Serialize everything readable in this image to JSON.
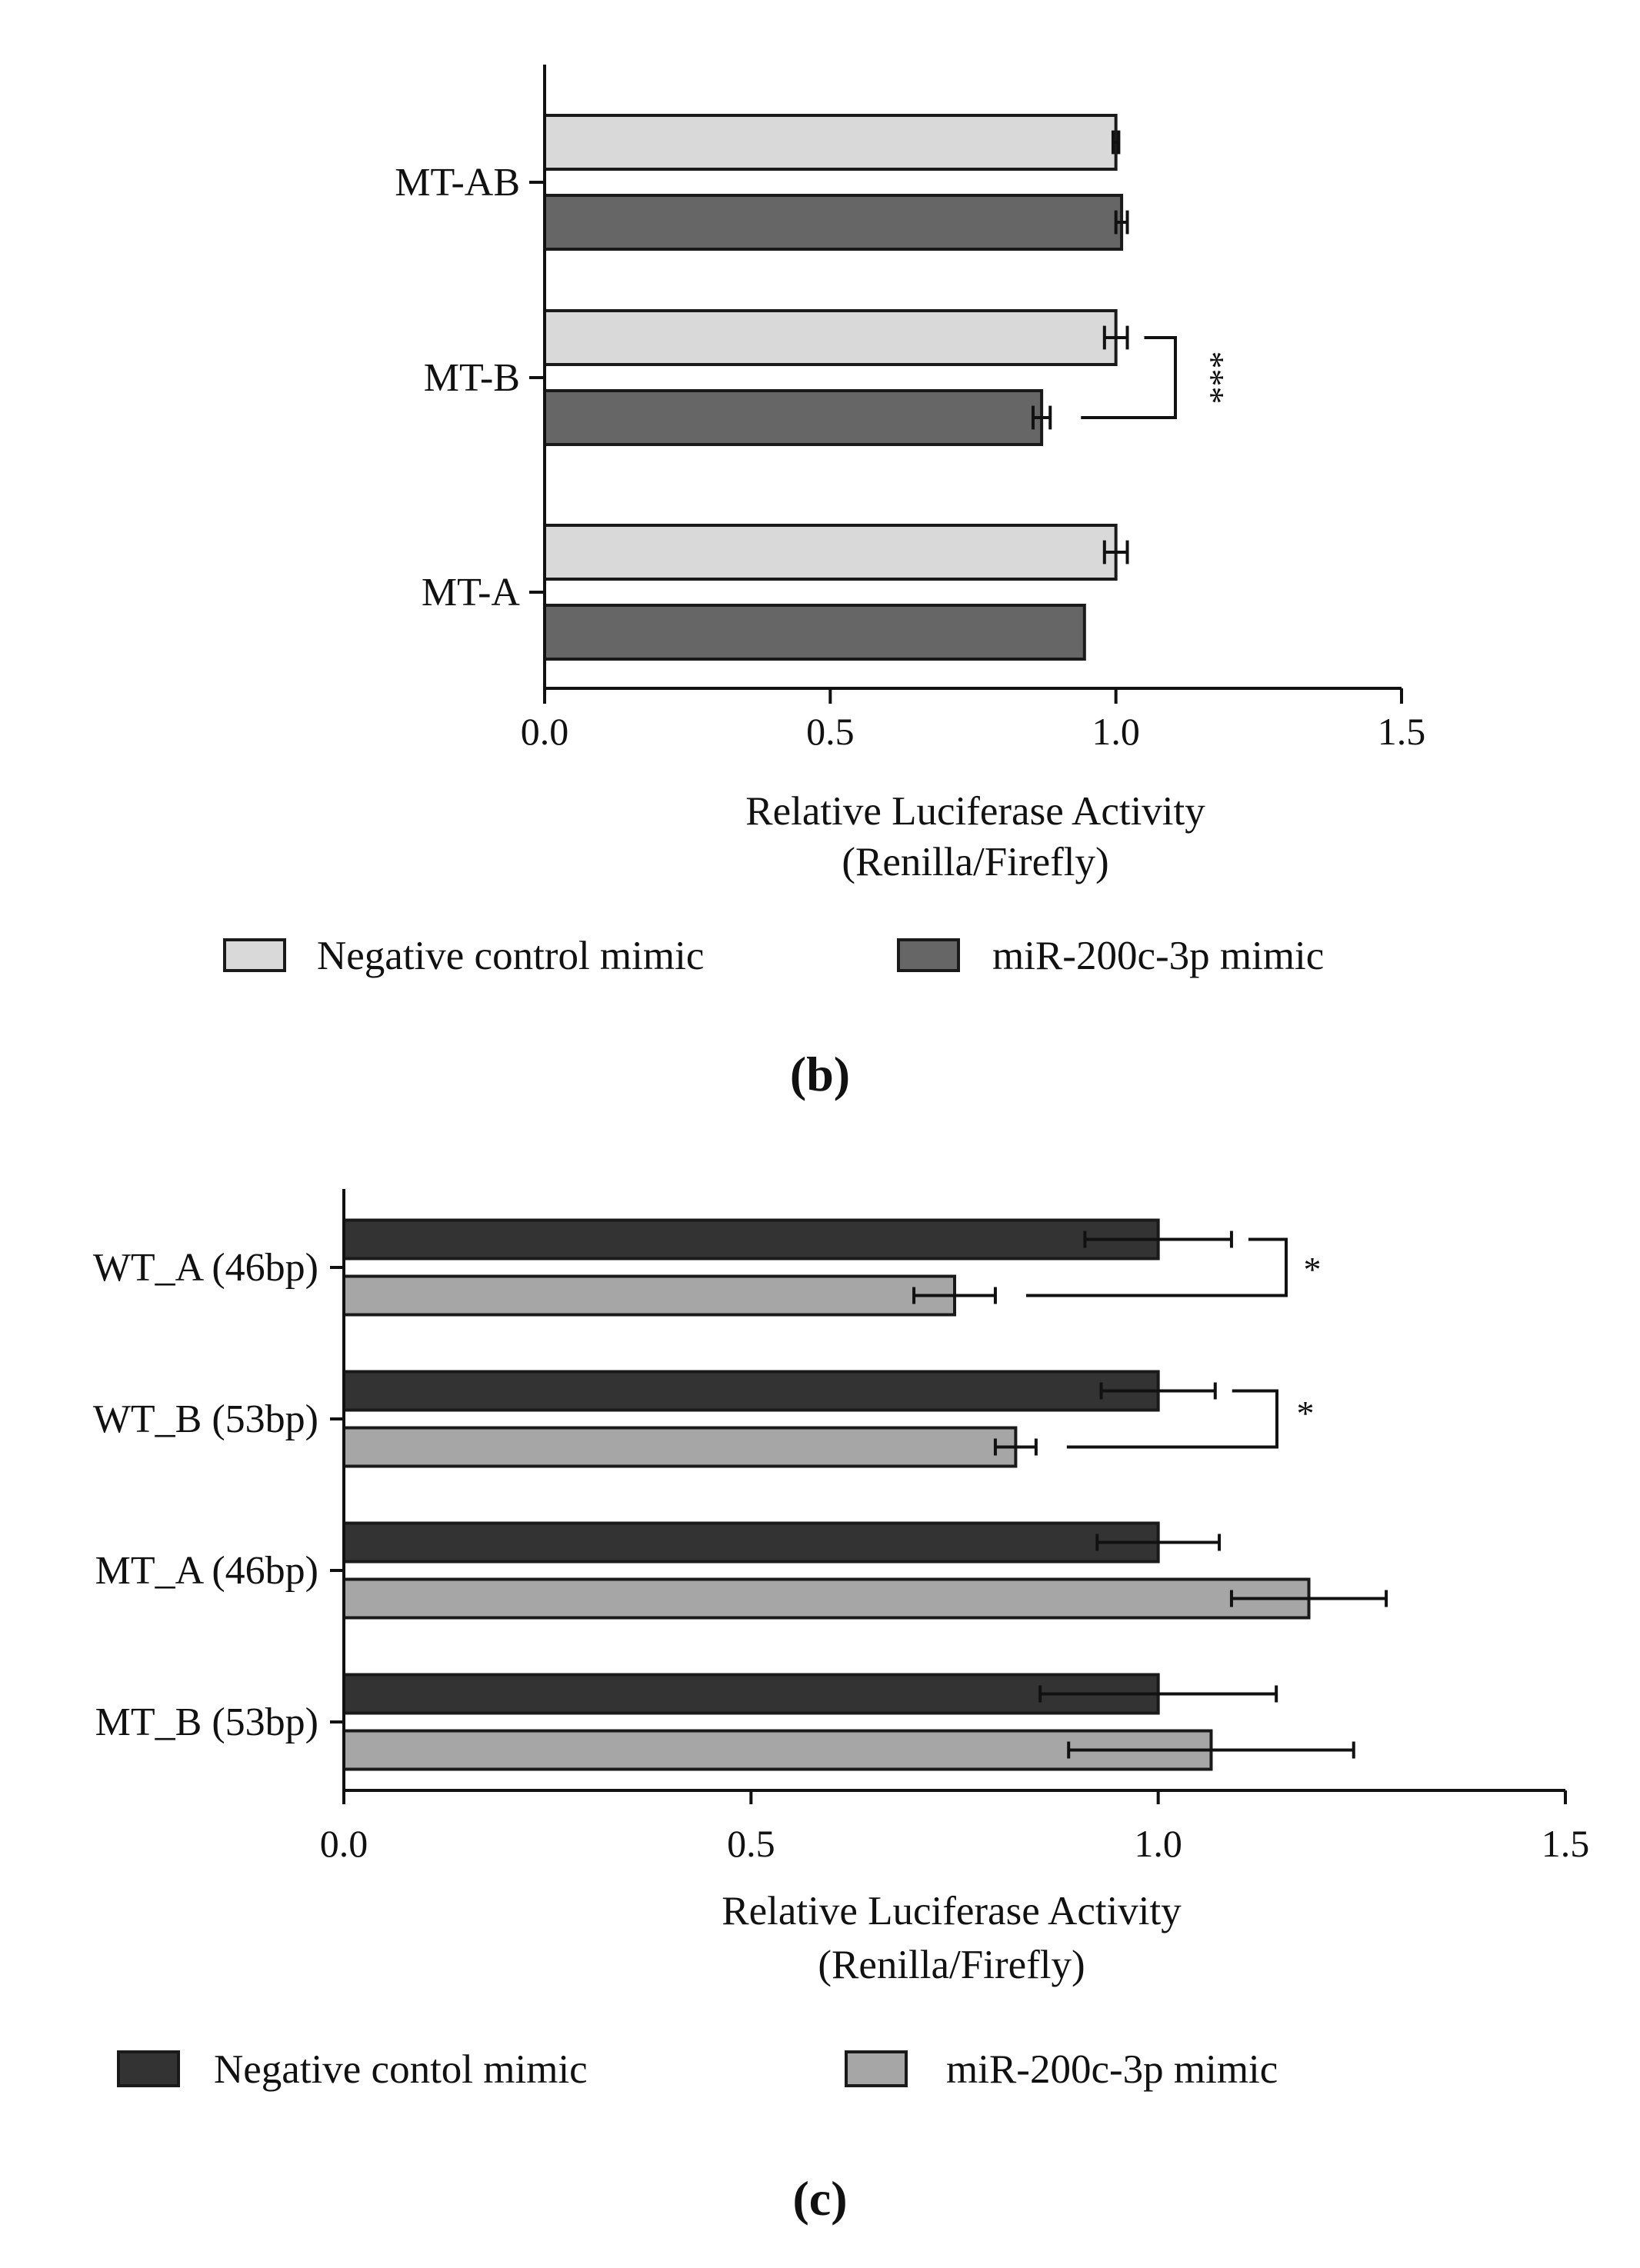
{
  "chart_data": [
    {
      "type": "bar",
      "orientation": "horizontal",
      "panel_label": "(b)",
      "categories": [
        "MT-AB",
        "MT-B",
        "MT-A"
      ],
      "xlabel_line1": "Relative Luciferase Activity",
      "xlabel_line2": "(Renilla/Firefly)",
      "xlim": [
        0,
        1.5
      ],
      "xticks": [
        "0.0",
        "0.5",
        "1.0",
        "1.5"
      ],
      "grid": false,
      "legend_position": "bottom",
      "series": [
        {
          "name": "Negative control mimic",
          "color": "#d9d9d9",
          "values": [
            1.0,
            1.0,
            1.0
          ],
          "errors": [
            0.005,
            0.02,
            0.02
          ]
        },
        {
          "name": "miR-200c-3p mimic",
          "color": "#666666",
          "values": [
            1.01,
            0.87,
            0.945
          ],
          "errors": [
            0.01,
            0.015,
            0.0
          ]
        }
      ],
      "significance": [
        {
          "category": "MT-B",
          "label": "***"
        }
      ]
    },
    {
      "type": "bar",
      "orientation": "horizontal",
      "panel_label": "(c)",
      "categories": [
        "WT_A (46bp)",
        "WT_B (53bp)",
        "MT_A (46bp)",
        "MT_B (53bp)"
      ],
      "xlabel_line1": "Relative Luciferase Activity",
      "xlabel_line2": "(Renilla/Firefly)",
      "xlim": [
        0,
        1.5
      ],
      "xticks": [
        "0.0",
        "0.5",
        "1.0",
        "1.5"
      ],
      "grid": false,
      "legend_position": "bottom",
      "series": [
        {
          "name": "Negative contol mimic",
          "color": "#333333",
          "values": [
            1.0,
            1.0,
            1.0,
            1.0
          ],
          "errors": [
            0.09,
            0.07,
            0.075,
            0.145
          ]
        },
        {
          "name": "miR-200c-3p mimic",
          "color": "#a6a6a6",
          "values": [
            0.75,
            0.825,
            1.185,
            1.065
          ],
          "errors": [
            0.05,
            0.025,
            0.095,
            0.175
          ]
        }
      ],
      "significance": [
        {
          "category": "WT_A (46bp)",
          "label": "*"
        },
        {
          "category": "WT_B (53bp)",
          "label": "*"
        }
      ]
    }
  ]
}
